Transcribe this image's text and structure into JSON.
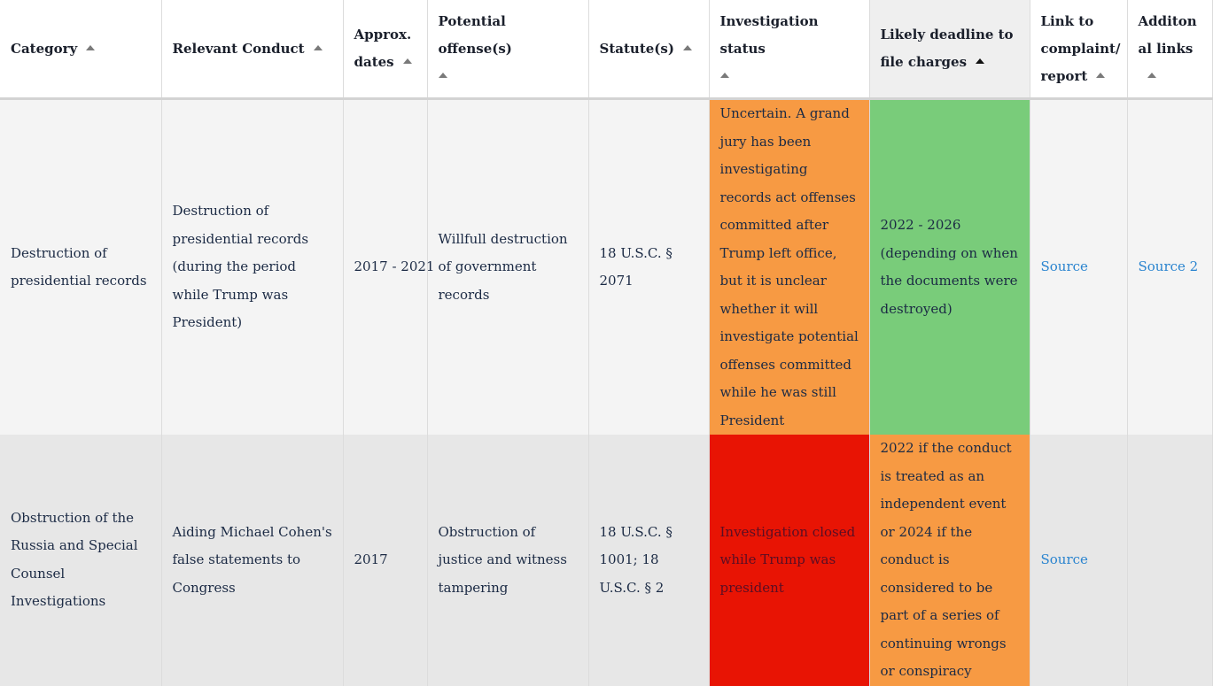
{
  "table": {
    "headers": [
      {
        "name": "Category",
        "sorted": false
      },
      {
        "name": "Relevant Conduct",
        "sorted": false
      },
      {
        "name": "Approx. dates",
        "sorted": false
      },
      {
        "name": "Potential offense(s)",
        "sorted": false
      },
      {
        "name": "Statute(s)",
        "sorted": false
      },
      {
        "name": "Investigation status",
        "sorted": false
      },
      {
        "name": "Likely deadline to file charges",
        "sorted": true
      },
      {
        "name": "Link to complaint/ report",
        "sorted": false
      },
      {
        "name": "Additonal links",
        "sorted": false
      }
    ],
    "rows": [
      {
        "category": "Destruction of presidential records",
        "conduct": "Destruction of presidential records (during the period while Trump was President)",
        "dates": "2017 - 2021",
        "offense": "Willfull destruction of government records",
        "statute": "18 U.S.C. § 2071",
        "status": "Uncertain. A grand jury has been investigating records act offenses committed after Trump left office, but it is unclear whether it will investigate potential offenses committed while he was still President",
        "status_color": "#f79a43",
        "deadline_line1": "2022 - 2026",
        "deadline_line2": "(depending on when the documents were destroyed)",
        "deadline_color": "#79cc7a",
        "link": "Source",
        "additional": "Source 2"
      },
      {
        "category": "Obstruction of the Russia and Special Counsel Investigations",
        "conduct": "Aiding Michael Cohen's false statements to Congress",
        "dates": "2017",
        "offense": "Obstruction of justice and witness tampering",
        "statute": "18 U.S.C. § 1001; 18 U.S.C. § 2",
        "status": "Investigation closed while Trump was president",
        "status_color": "#e81404",
        "deadline": "2022 if the conduct is treated as an independent event or 2024 if the conduct is considered to be part of a series of continuing wrongs or conspiracy",
        "deadline_color": "#f79a43",
        "link": "Source",
        "additional": ""
      }
    ]
  }
}
